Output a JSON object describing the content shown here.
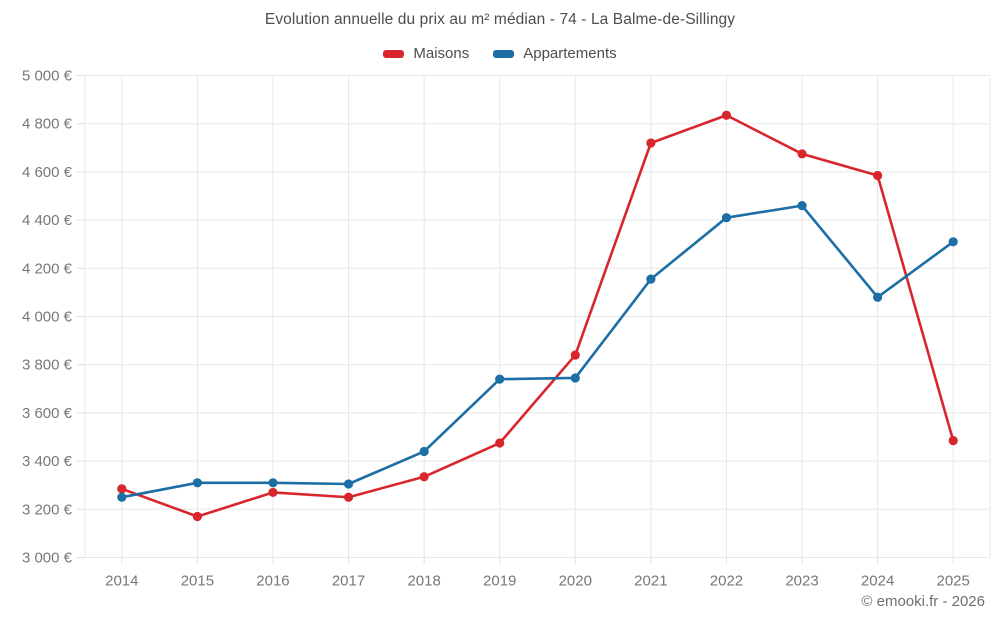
{
  "footer": "© emooki.fr - 2026",
  "colors": {
    "maisons": "#d8262c",
    "appartements": "#1c6ea4",
    "grid": "#e8e8e8",
    "tick": "#dedede",
    "axis_text": "#75787b",
    "title_text": "#4e4e4e"
  },
  "chart_data": {
    "type": "line",
    "title": "Evolution annuelle du prix au m² médian - 74 - La Balme-de-Sillingy",
    "x": [
      "2014",
      "2015",
      "2016",
      "2017",
      "2018",
      "2019",
      "2020",
      "2021",
      "2022",
      "2023",
      "2024",
      "2025"
    ],
    "series": [
      {
        "name": "Maisons",
        "color": "#d8262c",
        "values": [
          3285,
          3170,
          3270,
          3250,
          3335,
          3475,
          3840,
          4720,
          4835,
          4675,
          4585,
          3485
        ]
      },
      {
        "name": "Appartements",
        "color": "#1c6ea4",
        "values": [
          3250,
          3310,
          3310,
          3305,
          3440,
          3740,
          3745,
          4155,
          4410,
          4460,
          4080,
          4310
        ]
      }
    ],
    "xlabel": "",
    "ylabel": "",
    "ylim": [
      3000,
      5000
    ],
    "ytick_step": 200,
    "ytick_labels": [
      "3 000 €",
      "3 200 €",
      "3 400 €",
      "3 600 €",
      "3 800 €",
      "4 000 €",
      "4 200 €",
      "4 400 €",
      "4 600 €",
      "4 800 €",
      "5 000 €"
    ],
    "grid": true,
    "legend_position": "top",
    "marker": "circle"
  }
}
